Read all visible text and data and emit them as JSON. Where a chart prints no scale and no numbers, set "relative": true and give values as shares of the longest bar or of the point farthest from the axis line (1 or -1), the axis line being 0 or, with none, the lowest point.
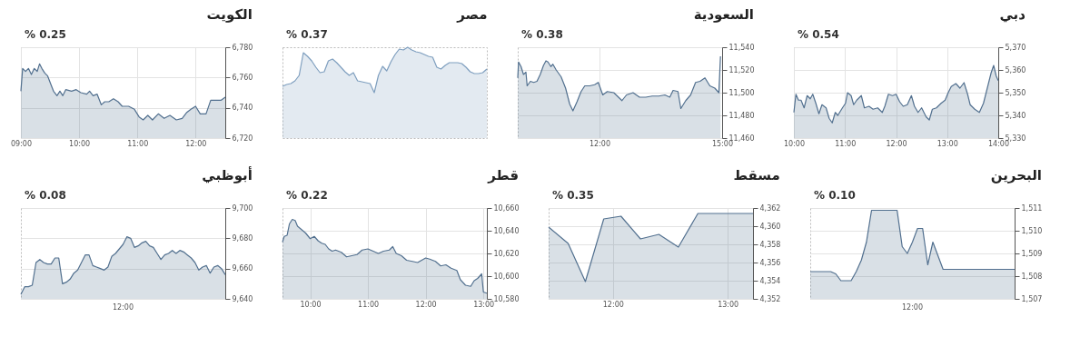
{
  "chart_data": [
    {
      "type": "area",
      "title": "الكويت",
      "annotations": [
        "% 0.25"
      ],
      "grid": true,
      "x": [
        9.0,
        9.03,
        9.08,
        9.13,
        9.18,
        9.23,
        9.28,
        9.32,
        9.36,
        9.41,
        9.46,
        9.52,
        9.56,
        9.62,
        9.67,
        9.72,
        9.77,
        9.87,
        9.95,
        10.03,
        10.13,
        10.18,
        10.24,
        10.31,
        10.38,
        10.44,
        10.51,
        10.59,
        10.67,
        10.74,
        10.85,
        10.95,
        11.03,
        11.1,
        11.18,
        11.26,
        11.36,
        11.46,
        11.56,
        11.67,
        11.77,
        11.85,
        11.92,
        12.0,
        12.08,
        12.18,
        12.26,
        12.33,
        12.44,
        12.51
      ],
      "series": [
        {
          "color": "#52708f",
          "values": [
            6751,
            6766,
            6764,
            6766,
            6762,
            6766,
            6764,
            6769,
            6766,
            6763,
            6761,
            6755,
            6751,
            6748,
            6751,
            6748,
            6752,
            6751,
            6752,
            6750,
            6749,
            6751,
            6748,
            6749,
            6742,
            6744,
            6744,
            6746,
            6744,
            6741,
            6741,
            6739,
            6734,
            6732,
            6735,
            6732,
            6736,
            6733,
            6735,
            6732,
            6733,
            6737,
            6739,
            6741,
            6736,
            6736,
            6745,
            6745,
            6745,
            6747
          ]
        }
      ],
      "xlim": [
        9.0,
        12.51
      ],
      "xticks": [
        {
          "value": 9,
          "label": "09:00"
        },
        {
          "value": 10,
          "label": "10:00"
        },
        {
          "value": 11,
          "label": "11:00"
        },
        {
          "value": 12,
          "label": "12:00"
        }
      ],
      "ylim": [
        6720,
        6780
      ],
      "yticks": [
        {
          "value": 6720,
          "label": "6,720"
        },
        {
          "value": 6740,
          "label": "6,740"
        },
        {
          "value": 6760,
          "label": "6,760"
        },
        {
          "value": 6780,
          "label": "6,780"
        }
      ]
    },
    {
      "type": "area",
      "title": "مصر",
      "annotations": [
        "% 0.37"
      ],
      "relative": true,
      "categories": [
        null,
        null,
        null,
        null,
        null,
        null,
        null,
        null,
        null,
        null,
        null,
        null,
        null,
        null,
        null,
        null,
        null,
        null,
        null,
        null,
        null,
        null,
        null,
        null,
        null,
        null,
        null,
        null,
        null,
        null,
        null,
        null,
        null,
        null,
        null,
        null,
        null,
        null,
        null,
        null,
        null,
        null,
        null,
        null,
        null,
        null,
        null,
        null,
        null,
        null
      ],
      "series": [
        {
          "color": "#7f9fbf",
          "values": [
            0.57,
            0.59,
            0.6,
            0.63,
            0.69,
            0.94,
            0.9,
            0.85,
            0.78,
            0.72,
            0.73,
            0.85,
            0.87,
            0.83,
            0.78,
            0.73,
            0.69,
            0.72,
            0.63,
            0.62,
            0.61,
            0.6,
            0.5,
            0.69,
            0.79,
            0.74,
            0.84,
            0.92,
            0.98,
            0.97,
            1.0,
            0.97,
            0.95,
            0.94,
            0.92,
            0.9,
            0.89,
            0.78,
            0.76,
            0.8,
            0.83,
            0.83,
            0.83,
            0.82,
            0.78,
            0.73,
            0.71,
            0.71,
            0.72,
            0.76
          ]
        }
      ]
    },
    {
      "type": "area",
      "title": "السعودية",
      "annotations": [
        "% 0.38"
      ],
      "grid": true,
      "x": [
        10.0,
        10.02,
        10.08,
        10.14,
        10.2,
        10.23,
        10.31,
        10.39,
        10.47,
        10.55,
        10.63,
        10.69,
        10.74,
        10.81,
        10.86,
        10.94,
        11.06,
        11.17,
        11.27,
        11.35,
        11.45,
        11.55,
        11.64,
        11.76,
        11.88,
        11.97,
        12.08,
        12.19,
        12.35,
        12.55,
        12.66,
        12.82,
        12.98,
        13.13,
        13.29,
        13.45,
        13.6,
        13.72,
        13.8,
        13.92,
        13.99,
        14.11,
        14.23,
        14.35,
        14.46,
        14.58,
        14.7,
        14.82,
        14.92,
        14.96
      ],
      "series": [
        {
          "color": "#52708f",
          "values": [
            11513,
            11527,
            11523,
            11516,
            11518,
            11506,
            11510,
            11509,
            11510,
            11516,
            11524,
            11528,
            11527,
            11523,
            11525,
            11520,
            11514,
            11504,
            11490,
            11484,
            11492,
            11501,
            11506,
            11506,
            11507,
            11509,
            11498,
            11501,
            11500,
            11493,
            11498,
            11500,
            11496,
            11496,
            11497,
            11497,
            11498,
            11496,
            11502,
            11501,
            11486,
            11493,
            11498,
            11509,
            11510,
            11513,
            11506,
            11504,
            11500,
            11532
          ]
        }
      ],
      "xlim": [
        10.0,
        15.0
      ],
      "xticks": [
        {
          "value": 12,
          "label": "12:00"
        },
        {
          "value": 15,
          "label": "15:00"
        }
      ],
      "ylim": [
        11460,
        11540
      ],
      "yticks": [
        {
          "value": 11460,
          "label": "11,460"
        },
        {
          "value": 11480,
          "label": "11,480"
        },
        {
          "value": 11500,
          "label": "11,500"
        },
        {
          "value": 11520,
          "label": "11,520"
        },
        {
          "value": 11540,
          "label": "11,540"
        }
      ]
    },
    {
      "type": "area",
      "title": "دبي",
      "annotations": [
        "% 0.54"
      ],
      "grid": true,
      "x": [
        10.0,
        10.04,
        10.09,
        10.14,
        10.2,
        10.26,
        10.32,
        10.37,
        10.43,
        10.49,
        10.55,
        10.63,
        10.69,
        10.75,
        10.81,
        10.86,
        10.95,
        11.01,
        11.05,
        11.12,
        11.17,
        11.23,
        11.32,
        11.38,
        11.47,
        11.55,
        11.64,
        11.73,
        11.78,
        11.85,
        11.93,
        12.0,
        12.07,
        12.14,
        12.22,
        12.3,
        12.36,
        12.43,
        12.5,
        12.59,
        12.65,
        12.71,
        12.79,
        12.88,
        12.96,
        13.02,
        13.08,
        13.17,
        13.25,
        13.33,
        13.4,
        13.45,
        13.54,
        13.63,
        13.71,
        13.8,
        13.86,
        13.91,
        13.96,
        14.0
      ],
      "series": [
        {
          "color": "#52708f",
          "values": [
            5341.3,
            5349.3,
            5346.7,
            5346.7,
            5343.3,
            5348.7,
            5347.3,
            5349.3,
            5345.3,
            5340.7,
            5344.7,
            5343.3,
            5338.7,
            5336.7,
            5341.3,
            5340,
            5343.3,
            5345.3,
            5350,
            5348.7,
            5344.7,
            5346.7,
            5348.7,
            5343.3,
            5344,
            5342.7,
            5343.3,
            5341.3,
            5344,
            5349.3,
            5348.7,
            5349.3,
            5346,
            5344,
            5344.7,
            5348.7,
            5344,
            5341.3,
            5343.3,
            5339.3,
            5338,
            5342.7,
            5343.3,
            5345.3,
            5346.7,
            5350,
            5352.7,
            5354,
            5352,
            5354.4,
            5349.3,
            5344.7,
            5342.7,
            5341.3,
            5345.3,
            5353.3,
            5358.7,
            5362,
            5357.3,
            5355.3
          ]
        }
      ],
      "xlim": [
        10.0,
        14.0
      ],
      "xticks": [
        {
          "value": 10,
          "label": "10:00"
        },
        {
          "value": 11,
          "label": "11:00"
        },
        {
          "value": 12,
          "label": "12:00"
        },
        {
          "value": 13,
          "label": "13:00"
        },
        {
          "value": 14,
          "label": "14:00"
        }
      ],
      "ylim": [
        5330,
        5370
      ],
      "yticks": [
        {
          "value": 5330,
          "label": "5,330"
        },
        {
          "value": 5340,
          "label": "5,340"
        },
        {
          "value": 5350,
          "label": "5,350"
        },
        {
          "value": 5360,
          "label": "5,360"
        },
        {
          "value": 5370,
          "label": "5,370"
        }
      ]
    },
    {
      "type": "area",
      "title": "أبوظبي",
      "annotations": [
        "% 0.08",
        "12:00"
      ],
      "grid": "y",
      "categories": [
        null,
        null,
        null,
        null,
        null,
        null,
        null,
        null,
        null,
        null,
        null,
        null,
        null,
        null,
        null,
        null,
        null,
        null,
        null,
        null,
        null,
        null,
        null,
        null,
        null,
        null,
        null,
        null,
        null,
        null,
        null,
        null,
        null,
        null,
        null,
        null,
        null,
        null,
        null,
        null,
        null,
        null,
        null,
        null,
        null,
        null,
        null,
        null,
        null,
        null,
        null,
        null,
        null,
        null,
        null
      ],
      "series": [
        {
          "color": "#52708f",
          "values": [
            9643,
            9648,
            9648,
            9649,
            9664,
            9666,
            9664,
            9663,
            9663,
            9667,
            9667,
            9650,
            9651,
            9653,
            9657,
            9659,
            9664,
            9669,
            9669,
            9662,
            9661,
            9660,
            9659,
            9661,
            9668,
            9670,
            9673,
            9676,
            9681,
            9680,
            9674,
            9675,
            9677,
            9678,
            9675,
            9674,
            9670,
            9666,
            9669,
            9670,
            9672,
            9670,
            9672,
            9671,
            9669,
            9667,
            9664,
            9659,
            9661,
            9662,
            9657,
            9661,
            9662,
            9660,
            9656
          ]
        }
      ],
      "ylim": [
        9640,
        9700
      ],
      "yticks": [
        {
          "value": 9640,
          "label": "9,640"
        },
        {
          "value": 9660,
          "label": "9,660"
        },
        {
          "value": 9680,
          "label": "9,680"
        },
        {
          "value": 9700,
          "label": "9,700"
        }
      ]
    },
    {
      "type": "area",
      "title": "قطر",
      "annotations": [
        "% 0.22"
      ],
      "grid": true,
      "x": [
        9.52,
        9.55,
        9.6,
        9.64,
        9.69,
        9.74,
        9.78,
        9.85,
        9.92,
        10.0,
        10.07,
        10.14,
        10.2,
        10.26,
        10.32,
        10.38,
        10.44,
        10.54,
        10.63,
        10.72,
        10.81,
        10.9,
        11.0,
        11.09,
        11.18,
        11.27,
        11.37,
        11.43,
        11.49,
        11.58,
        11.67,
        11.77,
        11.86,
        12.0,
        12.07,
        12.17,
        12.26,
        12.35,
        12.44,
        12.54,
        12.6,
        12.69,
        12.78,
        12.84,
        12.9,
        12.97,
        13.0,
        13.06
      ],
      "series": [
        {
          "color": "#52708f",
          "values": [
            10630,
            10635,
            10636,
            10646,
            10650,
            10649,
            10644,
            10641,
            10638,
            10633,
            10635,
            10631,
            10629,
            10628,
            10624,
            10622,
            10623,
            10621,
            10617,
            10618,
            10619,
            10623,
            10624,
            10622,
            10620,
            10622,
            10623,
            10626,
            10620,
            10618,
            10614,
            10613,
            10612,
            10616,
            10615,
            10613,
            10609,
            10610,
            10607,
            10605,
            10597,
            10592,
            10591,
            10596,
            10598,
            10602,
            10586,
            10585
          ]
        }
      ],
      "xlim": [
        9.52,
        13.06
      ],
      "xticks": [
        {
          "value": 10,
          "label": "10:00"
        },
        {
          "value": 11,
          "label": "11:00"
        },
        {
          "value": 12,
          "label": "12:00"
        },
        {
          "value": 13,
          "label": "13:00"
        }
      ],
      "ylim": [
        10580,
        10660
      ],
      "yticks": [
        {
          "value": 10580,
          "label": "10,580"
        },
        {
          "value": 10600,
          "label": "10,600"
        },
        {
          "value": 10620,
          "label": "10,620"
        },
        {
          "value": 10640,
          "label": "10,640"
        },
        {
          "value": 10660,
          "label": "10,660"
        }
      ]
    },
    {
      "type": "area",
      "title": "مسقط",
      "annotations": [
        "% 0.35"
      ],
      "grid": true,
      "x": [
        11.44,
        11.61,
        11.76,
        11.92,
        12.07,
        12.24,
        12.4,
        12.57,
        12.74,
        13.22
      ],
      "series": [
        {
          "color": "#52708f",
          "values": [
            4359.9,
            4358.1,
            4353.9,
            4360.8,
            4361.1,
            4358.6,
            4359.1,
            4357.7,
            4361.4,
            4361.4
          ]
        }
      ],
      "xlim": [
        11.44,
        13.22
      ],
      "xticks": [
        {
          "value": 12,
          "label": "12:00"
        },
        {
          "value": 13,
          "label": "13:00"
        }
      ],
      "ylim": [
        4352,
        4362
      ],
      "yticks": [
        {
          "value": 4352,
          "label": "4,352"
        },
        {
          "value": 4354,
          "label": "4,354"
        },
        {
          "value": 4356,
          "label": "4,356"
        },
        {
          "value": 4358,
          "label": "4,358"
        },
        {
          "value": 4360,
          "label": "4,360"
        },
        {
          "value": 4362,
          "label": "4,362"
        }
      ]
    },
    {
      "type": "area",
      "title": "البحرين",
      "annotations": [
        "% 0.10",
        "12:00"
      ],
      "grid": "y",
      "categories": [
        null,
        null,
        null,
        null,
        null,
        null,
        null,
        null,
        null,
        null,
        null,
        null,
        null,
        null,
        null,
        null,
        null,
        null,
        null,
        null,
        null,
        null,
        null,
        null,
        null,
        null,
        null,
        null,
        null,
        null,
        null,
        null,
        null,
        null,
        null,
        null,
        null,
        null,
        null,
        null,
        null
      ],
      "series": [
        {
          "color": "#52708f",
          "values": [
            1508.2,
            1508.2,
            1508.2,
            1508.2,
            1508.2,
            1508.1,
            1507.8,
            1507.8,
            1507.8,
            1508.2,
            1508.7,
            1509.5,
            1510.9,
            1510.9,
            1510.9,
            1510.9,
            1510.9,
            1510.9,
            1509.3,
            1509.0,
            1509.5,
            1510.1,
            1510.1,
            1508.5,
            1509.5,
            1508.9,
            1508.3,
            1508.3,
            1508.3,
            1508.3,
            1508.3,
            1508.3,
            1508.3,
            1508.3,
            1508.3,
            1508.3,
            1508.3,
            1508.3,
            1508.3,
            1508.3,
            1508.3
          ]
        }
      ],
      "ylim": [
        1507,
        1511
      ],
      "yticks": [
        {
          "value": 1507,
          "label": "1,507"
        },
        {
          "value": 1508,
          "label": "1,508"
        },
        {
          "value": 1509,
          "label": "1,509"
        },
        {
          "value": 1510,
          "label": "1,510"
        },
        {
          "value": 1511,
          "label": "1,511"
        }
      ]
    }
  ]
}
